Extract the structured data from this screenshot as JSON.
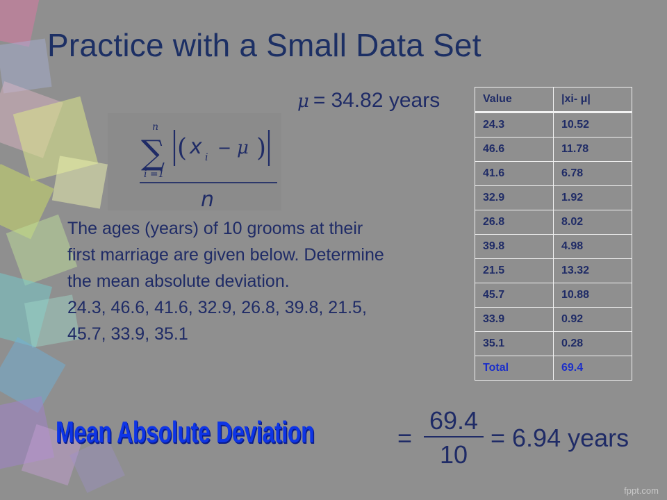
{
  "title": "Practice with a Small Data Set",
  "mean": {
    "symbol": "μ",
    "equals": "=",
    "value_text": "34.82 years"
  },
  "formula": {
    "upper_limit": "n",
    "lower_limit": "i =1",
    "variable": "x",
    "subscript": "i",
    "mu": "μ",
    "denominator": "n"
  },
  "problem": {
    "paragraph": "The ages (years) of 10 grooms at their first marriage are given below. Determine the mean absolute deviation.",
    "values_line": "24.3, 46.6, 41.6, 32.9, 26.8, 39.8, 21.5, 45.7, 33.9, 35.1"
  },
  "table": {
    "headers": [
      "Value",
      "|xi- μ|"
    ],
    "rows": [
      [
        "24.3",
        "10.52"
      ],
      [
        "46.6",
        "11.78"
      ],
      [
        "41.6",
        "6.78"
      ],
      [
        "32.9",
        "1.92"
      ],
      [
        "26.8",
        "8.02"
      ],
      [
        "39.8",
        "4.98"
      ],
      [
        "21.5",
        "13.32"
      ],
      [
        "45.7",
        "10.88"
      ],
      [
        "33.9",
        "0.92"
      ],
      [
        "35.1",
        "0.28"
      ]
    ],
    "total": [
      "Total",
      "69.4"
    ]
  },
  "mad": {
    "title": "Mean Absolute Deviation",
    "equals": "=",
    "numerator": "69.4",
    "denominator": "10",
    "result": "= 6.94 years"
  },
  "watermark": "fppt.com",
  "colors": {
    "background": "#8f8f8f",
    "text": "#1f2b66",
    "mad_title": "#0e35e6",
    "table_border": "#f2f2f2"
  }
}
